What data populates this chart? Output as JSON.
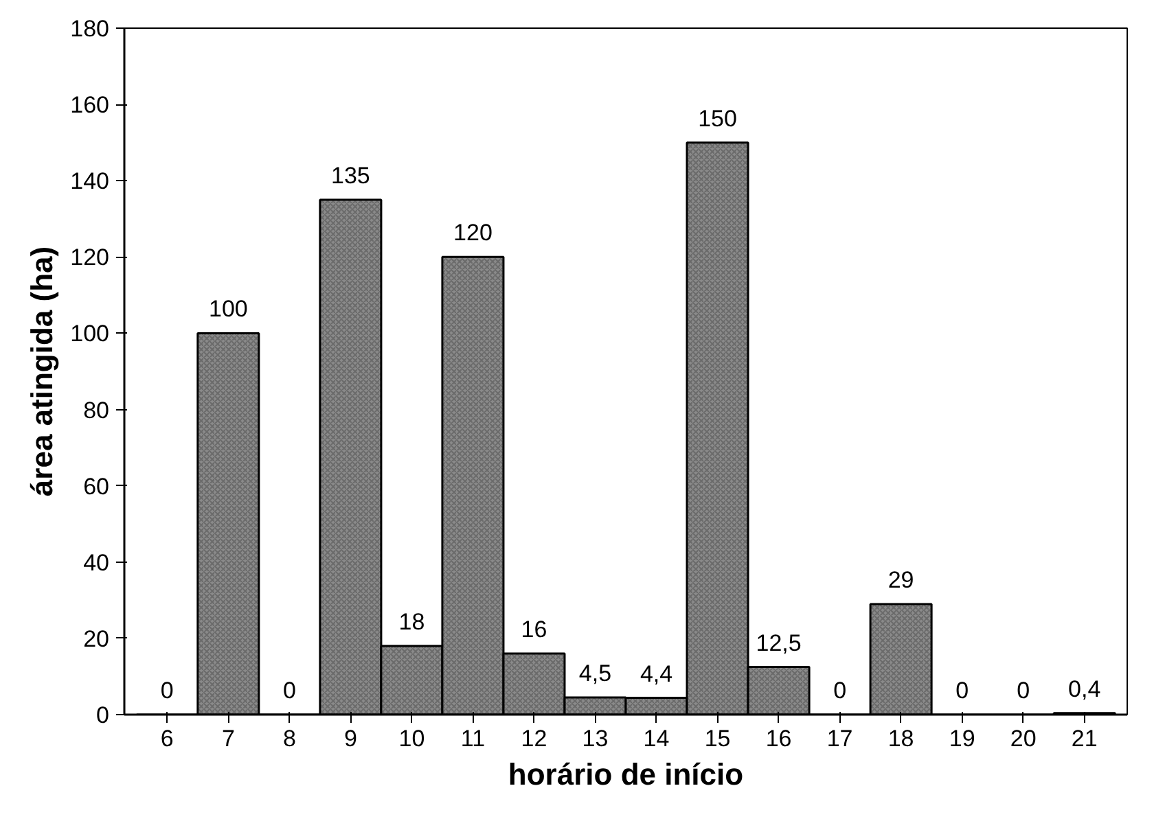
{
  "chart_data": {
    "type": "bar",
    "xlabel": "horário de início",
    "ylabel": "área atingida (ha)",
    "categories": [
      "6",
      "7",
      "8",
      "9",
      "10",
      "11",
      "12",
      "13",
      "14",
      "15",
      "16",
      "17",
      "18",
      "19",
      "20",
      "21"
    ],
    "values": [
      0,
      100,
      0,
      135,
      18,
      120,
      16,
      4.5,
      4.4,
      150,
      12.5,
      0,
      29,
      0,
      0,
      0.4
    ],
    "value_labels": [
      "0",
      "100",
      "0",
      "135",
      "18",
      "120",
      "16",
      "4,5",
      "4,4",
      "150",
      "12,5",
      "0",
      "29",
      "0",
      "0",
      "0,4"
    ],
    "color": "#8a8a8a",
    "ylim": [
      0,
      180
    ],
    "yticks": [
      0,
      20,
      40,
      60,
      80,
      100,
      120,
      140,
      160,
      180
    ],
    "grid": false
  }
}
